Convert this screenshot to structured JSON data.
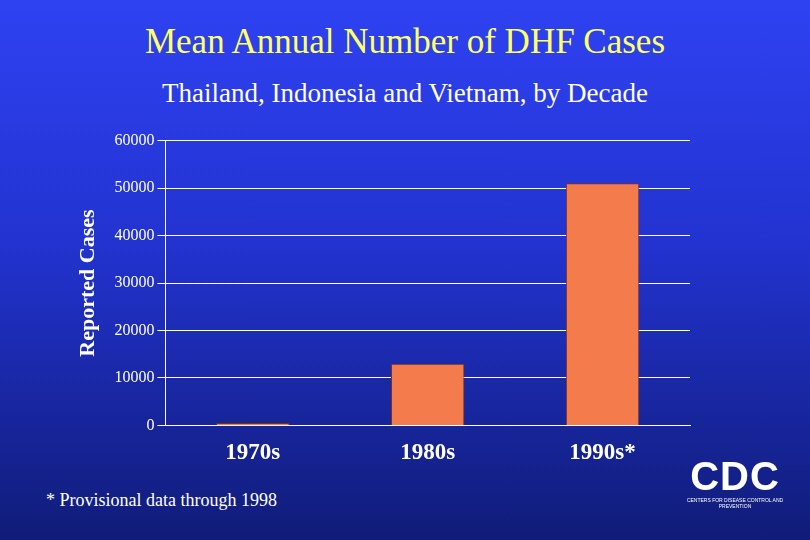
{
  "chart_data": {
    "type": "bar",
    "title": "Mean Annual Number of DHF Cases",
    "subtitle": "Thailand, Indonesia and Vietnam, by Decade",
    "y_label": "Reported Cases",
    "categories": [
      "1970s",
      "1980s",
      "1990s*"
    ],
    "values": [
      500,
      13000,
      51000
    ],
    "color": "#f47b4b",
    "ylim": [
      0,
      60000
    ],
    "yticks": [
      0,
      10000,
      20000,
      30000,
      40000,
      50000,
      60000
    ],
    "grid": true,
    "footnote": "* Provisional data through 1998",
    "logo": "CDC",
    "logo_subtitle": "CENTERS FOR DISEASE CONTROL AND PREVENTION"
  }
}
